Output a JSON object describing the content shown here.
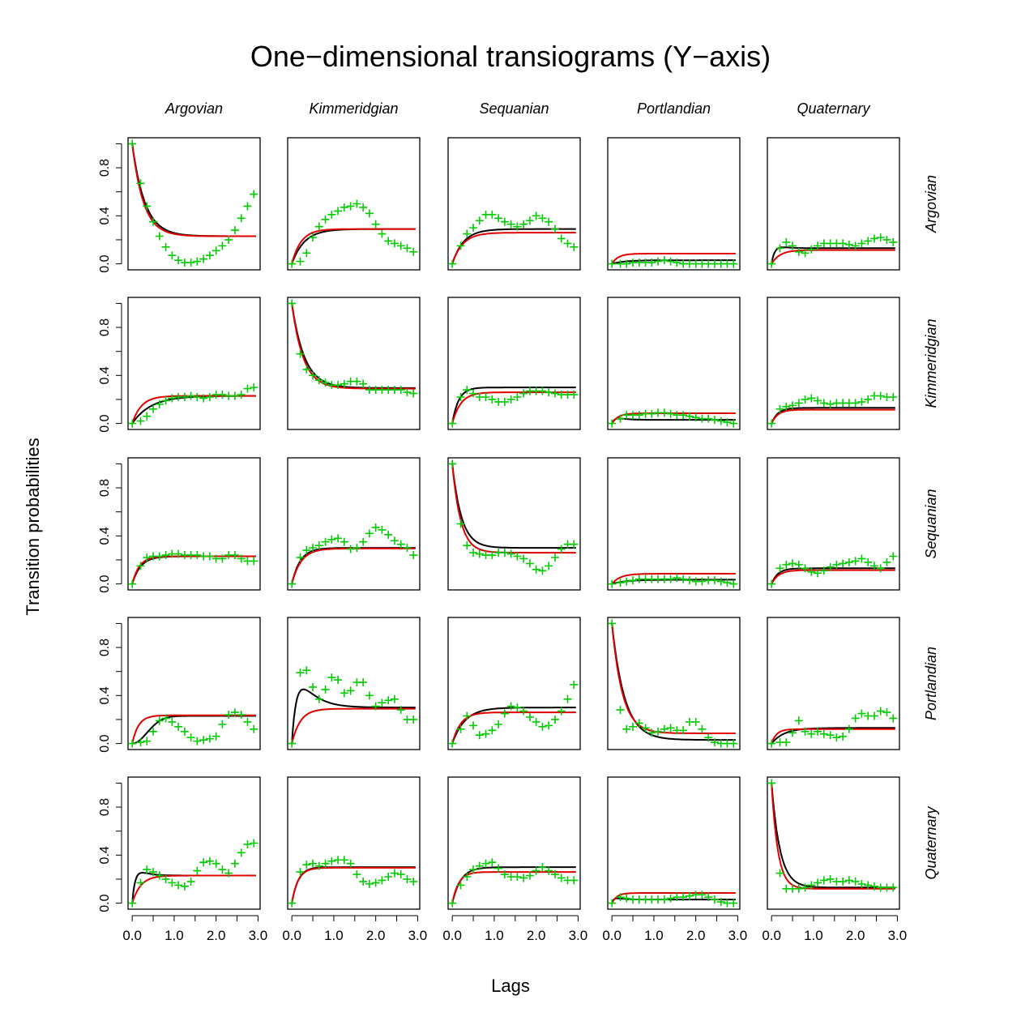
{
  "title": "One−dimensional transiograms (Y−axis)",
  "xlabel": "Lags",
  "ylabel": "Transition probabilities",
  "colors": {
    "empirical": "#00cc00",
    "model_black": "#000000",
    "model_red": "#e00000"
  },
  "chart_data": {
    "type": "scatter",
    "layout": "5x5 grid of panels (row state to column state)",
    "classes": [
      "Argovian",
      "Kimmeridgian",
      "Sequanian",
      "Portlandian",
      "Quaternary"
    ],
    "xlim": [
      0,
      3
    ],
    "ylim": [
      0,
      1
    ],
    "x_ticks": [
      "0.0",
      "1.0",
      "2.0",
      "3.0"
    ],
    "y_ticks": [
      "0.0",
      "0.4",
      "0.8"
    ],
    "lags": [
      0.0,
      0.2,
      0.35,
      0.5,
      0.65,
      0.8,
      0.95,
      1.1,
      1.25,
      1.4,
      1.55,
      1.7,
      1.85,
      2.0,
      2.15,
      2.3,
      2.45,
      2.6,
      2.75,
      2.9
    ],
    "panels": [
      [
        {
          "empirical": [
            1.0,
            0.67,
            0.48,
            0.35,
            0.23,
            0.14,
            0.07,
            0.03,
            0.01,
            0.01,
            0.02,
            0.04,
            0.07,
            0.11,
            0.15,
            0.2,
            0.28,
            0.38,
            0.48,
            0.58
          ],
          "black": {
            "sill": 0.23,
            "range": 0.3,
            "shape": "exp"
          },
          "red": {
            "sill": 0.23,
            "range": 0.27,
            "shape": "exp"
          }
        },
        {
          "empirical": [
            0.0,
            0.02,
            0.09,
            0.22,
            0.31,
            0.37,
            0.41,
            0.44,
            0.47,
            0.48,
            0.5,
            0.47,
            0.42,
            0.33,
            0.25,
            0.19,
            0.17,
            0.15,
            0.13,
            0.1
          ],
          "black": {
            "sill": 0.29,
            "range": 0.3,
            "shape": "exp"
          },
          "red": {
            "sill": 0.29,
            "range": 0.22,
            "shape": "exp"
          }
        },
        {
          "empirical": [
            0.0,
            0.15,
            0.25,
            0.3,
            0.36,
            0.41,
            0.41,
            0.38,
            0.35,
            0.33,
            0.31,
            0.33,
            0.36,
            0.4,
            0.38,
            0.35,
            0.29,
            0.21,
            0.17,
            0.14
          ],
          "black": {
            "sill": 0.29,
            "range": 0.27,
            "shape": "exp"
          },
          "red": {
            "sill": 0.26,
            "range": 0.25,
            "shape": "exp"
          }
        },
        {
          "empirical": [
            0.0,
            0.0,
            0.0,
            0.01,
            0.01,
            0.01,
            0.01,
            0.02,
            0.03,
            0.02,
            0.01,
            0.0,
            0.0,
            0.0,
            0.0,
            0.0,
            0.0,
            0.0,
            0.0,
            0.0
          ],
          "black": {
            "sill": 0.03,
            "range": 0.3,
            "shape": "exp"
          },
          "red": {
            "sill": 0.085,
            "range": 0.15,
            "shape": "exp"
          }
        },
        {
          "empirical": [
            0.0,
            0.13,
            0.18,
            0.15,
            0.1,
            0.09,
            0.12,
            0.15,
            0.17,
            0.17,
            0.17,
            0.17,
            0.16,
            0.15,
            0.17,
            0.19,
            0.21,
            0.22,
            0.2,
            0.18
          ],
          "black": {
            "sill": 0.13,
            "range": 0.2,
            "shape": "hump",
            "peak": 0.15
          },
          "red": {
            "sill": 0.115,
            "range": 0.2,
            "shape": "exp"
          }
        }
      ],
      [
        {
          "empirical": [
            0.0,
            0.02,
            0.06,
            0.12,
            0.16,
            0.19,
            0.21,
            0.22,
            0.22,
            0.23,
            0.22,
            0.21,
            0.22,
            0.24,
            0.24,
            0.23,
            0.23,
            0.24,
            0.29,
            0.3
          ],
          "black": {
            "sill": 0.23,
            "range": 0.45,
            "shape": "exp"
          },
          "red": {
            "sill": 0.23,
            "range": 0.22,
            "shape": "exp"
          }
        },
        {
          "empirical": [
            1.0,
            0.58,
            0.45,
            0.4,
            0.36,
            0.34,
            0.32,
            0.32,
            0.33,
            0.35,
            0.35,
            0.33,
            0.28,
            0.28,
            0.28,
            0.28,
            0.28,
            0.28,
            0.26,
            0.25
          ],
          "black": {
            "sill": 0.295,
            "range": 0.3,
            "shape": "exp"
          },
          "red": {
            "sill": 0.29,
            "range": 0.27,
            "shape": "exp"
          }
        },
        {
          "empirical": [
            0.0,
            0.22,
            0.28,
            0.25,
            0.22,
            0.22,
            0.2,
            0.18,
            0.18,
            0.2,
            0.22,
            0.25,
            0.27,
            0.27,
            0.27,
            0.26,
            0.25,
            0.24,
            0.24,
            0.24
          ],
          "black": {
            "sill": 0.3,
            "range": 0.15,
            "shape": "exp"
          },
          "red": {
            "sill": 0.26,
            "range": 0.2,
            "shape": "exp"
          }
        },
        {
          "empirical": [
            0.0,
            0.04,
            0.07,
            0.07,
            0.07,
            0.08,
            0.08,
            0.09,
            0.09,
            0.08,
            0.07,
            0.07,
            0.06,
            0.05,
            0.04,
            0.04,
            0.03,
            0.02,
            0.01,
            0.0
          ],
          "black": {
            "sill": 0.03,
            "range": 0.2,
            "shape": "hump",
            "peak": 0.045
          },
          "red": {
            "sill": 0.085,
            "range": 0.15,
            "shape": "exp"
          }
        },
        {
          "empirical": [
            0.0,
            0.12,
            0.14,
            0.15,
            0.17,
            0.2,
            0.21,
            0.19,
            0.17,
            0.16,
            0.17,
            0.17,
            0.17,
            0.17,
            0.18,
            0.2,
            0.23,
            0.23,
            0.22,
            0.22
          ],
          "black": {
            "sill": 0.13,
            "range": 0.15,
            "shape": "exp"
          },
          "red": {
            "sill": 0.115,
            "range": 0.15,
            "shape": "exp"
          }
        }
      ],
      [
        {
          "empirical": [
            0.0,
            0.15,
            0.22,
            0.23,
            0.23,
            0.24,
            0.25,
            0.25,
            0.24,
            0.24,
            0.24,
            0.23,
            0.23,
            0.21,
            0.21,
            0.24,
            0.24,
            0.21,
            0.19,
            0.19
          ],
          "black": {
            "sill": 0.23,
            "range": 0.2,
            "shape": "exp"
          },
          "red": {
            "sill": 0.23,
            "range": 0.17,
            "shape": "exp"
          }
        },
        {
          "empirical": [
            0.0,
            0.22,
            0.28,
            0.3,
            0.32,
            0.35,
            0.37,
            0.38,
            0.35,
            0.29,
            0.3,
            0.35,
            0.42,
            0.47,
            0.45,
            0.41,
            0.36,
            0.33,
            0.3,
            0.24
          ],
          "black": {
            "sill": 0.3,
            "range": 0.2,
            "shape": "exp"
          },
          "red": {
            "sill": 0.295,
            "range": 0.22,
            "shape": "exp"
          }
        },
        {
          "empirical": [
            1.0,
            0.5,
            0.32,
            0.26,
            0.25,
            0.24,
            0.24,
            0.26,
            0.26,
            0.25,
            0.23,
            0.21,
            0.17,
            0.12,
            0.11,
            0.15,
            0.22,
            0.29,
            0.33,
            0.33
          ],
          "black": {
            "sill": 0.3,
            "range": 0.22,
            "shape": "exp"
          },
          "red": {
            "sill": 0.26,
            "range": 0.2,
            "shape": "exp"
          }
        },
        {
          "empirical": [
            0.0,
            0.01,
            0.02,
            0.03,
            0.04,
            0.04,
            0.04,
            0.04,
            0.04,
            0.04,
            0.05,
            0.04,
            0.03,
            0.02,
            0.02,
            0.03,
            0.03,
            0.02,
            0.01,
            0.0
          ],
          "black": {
            "sill": 0.035,
            "range": 0.35,
            "shape": "exp"
          },
          "red": {
            "sill": 0.085,
            "range": 0.2,
            "shape": "exp"
          }
        },
        {
          "empirical": [
            0.0,
            0.13,
            0.16,
            0.17,
            0.16,
            0.13,
            0.1,
            0.09,
            0.11,
            0.14,
            0.16,
            0.17,
            0.18,
            0.19,
            0.21,
            0.18,
            0.15,
            0.13,
            0.18,
            0.23
          ],
          "black": {
            "sill": 0.13,
            "range": 0.15,
            "shape": "exp"
          },
          "red": {
            "sill": 0.115,
            "range": 0.17,
            "shape": "exp"
          }
        }
      ],
      [
        {
          "empirical": [
            0.0,
            0.01,
            0.02,
            0.1,
            0.19,
            0.21,
            0.18,
            0.14,
            0.1,
            0.05,
            0.02,
            0.03,
            0.04,
            0.06,
            0.16,
            0.24,
            0.26,
            0.24,
            0.18,
            0.12
          ],
          "black": {
            "sill": 0.23,
            "range": 0.5,
            "shape": "sshape"
          },
          "red": {
            "sill": 0.235,
            "range": 0.15,
            "shape": "exp"
          }
        },
        {
          "empirical": [
            0.0,
            0.59,
            0.61,
            0.47,
            0.37,
            0.45,
            0.55,
            0.53,
            0.42,
            0.44,
            0.51,
            0.51,
            0.4,
            0.31,
            0.34,
            0.36,
            0.37,
            0.28,
            0.2,
            0.2
          ],
          "black": {
            "sill": 0.3,
            "range": 0.35,
            "shape": "hump",
            "peak": 0.49
          },
          "red": {
            "sill": 0.29,
            "range": 0.2,
            "shape": "exp"
          }
        },
        {
          "empirical": [
            0.0,
            0.12,
            0.23,
            0.15,
            0.07,
            0.08,
            0.11,
            0.16,
            0.25,
            0.31,
            0.3,
            0.27,
            0.22,
            0.18,
            0.14,
            0.15,
            0.2,
            0.27,
            0.37,
            0.49
          ],
          "black": {
            "sill": 0.3,
            "range": 0.3,
            "shape": "exp"
          },
          "red": {
            "sill": 0.26,
            "range": 0.2,
            "shape": "exp"
          }
        },
        {
          "empirical": [
            1.0,
            0.28,
            0.12,
            0.14,
            0.17,
            0.13,
            0.09,
            0.1,
            0.12,
            0.13,
            0.11,
            0.11,
            0.18,
            0.18,
            0.12,
            0.05,
            0.01,
            0.0,
            0.0,
            0.0
          ],
          "black": {
            "sill": 0.03,
            "range": 0.3,
            "shape": "exp"
          },
          "red": {
            "sill": 0.085,
            "range": 0.25,
            "shape": "exp"
          }
        },
        {
          "empirical": [
            0.0,
            0.01,
            0.01,
            0.09,
            0.19,
            0.1,
            0.08,
            0.1,
            0.08,
            0.07,
            0.05,
            0.06,
            0.12,
            0.21,
            0.25,
            0.23,
            0.23,
            0.27,
            0.26,
            0.21
          ],
          "black": {
            "sill": 0.13,
            "range": 0.3,
            "shape": "exp"
          },
          "red": {
            "sill": 0.12,
            "range": 0.12,
            "shape": "exp"
          }
        }
      ],
      [
        {
          "empirical": [
            0.0,
            0.17,
            0.28,
            0.26,
            0.23,
            0.2,
            0.17,
            0.15,
            0.14,
            0.18,
            0.27,
            0.34,
            0.35,
            0.33,
            0.28,
            0.25,
            0.33,
            0.42,
            0.49,
            0.5
          ],
          "black": {
            "sill": 0.23,
            "range": 0.2,
            "shape": "hump",
            "peak": 0.28
          },
          "red": {
            "sill": 0.23,
            "range": 0.2,
            "shape": "exp"
          }
        },
        {
          "empirical": [
            0.0,
            0.26,
            0.32,
            0.33,
            0.31,
            0.33,
            0.35,
            0.36,
            0.36,
            0.33,
            0.24,
            0.18,
            0.16,
            0.17,
            0.19,
            0.22,
            0.25,
            0.24,
            0.2,
            0.18
          ],
          "black": {
            "sill": 0.3,
            "range": 0.15,
            "shape": "exp"
          },
          "red": {
            "sill": 0.295,
            "range": 0.15,
            "shape": "exp"
          }
        },
        {
          "empirical": [
            0.0,
            0.15,
            0.22,
            0.28,
            0.31,
            0.33,
            0.34,
            0.29,
            0.24,
            0.22,
            0.22,
            0.21,
            0.23,
            0.27,
            0.3,
            0.27,
            0.24,
            0.21,
            0.19,
            0.19
          ],
          "black": {
            "sill": 0.3,
            "range": 0.2,
            "shape": "exp"
          },
          "red": {
            "sill": 0.26,
            "range": 0.15,
            "shape": "exp"
          }
        },
        {
          "empirical": [
            0.0,
            0.05,
            0.04,
            0.03,
            0.03,
            0.03,
            0.03,
            0.03,
            0.03,
            0.04,
            0.05,
            0.05,
            0.06,
            0.07,
            0.07,
            0.05,
            0.03,
            0.01,
            0.0,
            0.0
          ],
          "black": {
            "sill": 0.03,
            "range": 0.15,
            "shape": "hump",
            "peak": 0.045
          },
          "red": {
            "sill": 0.085,
            "range": 0.12,
            "shape": "exp"
          }
        },
        {
          "empirical": [
            1.0,
            0.25,
            0.12,
            0.12,
            0.12,
            0.13,
            0.15,
            0.17,
            0.19,
            0.2,
            0.18,
            0.18,
            0.19,
            0.18,
            0.16,
            0.15,
            0.14,
            0.13,
            0.13,
            0.13
          ],
          "black": {
            "sill": 0.13,
            "range": 0.2,
            "shape": "exp"
          },
          "red": {
            "sill": 0.12,
            "range": 0.15,
            "shape": "exp"
          }
        }
      ]
    ]
  }
}
